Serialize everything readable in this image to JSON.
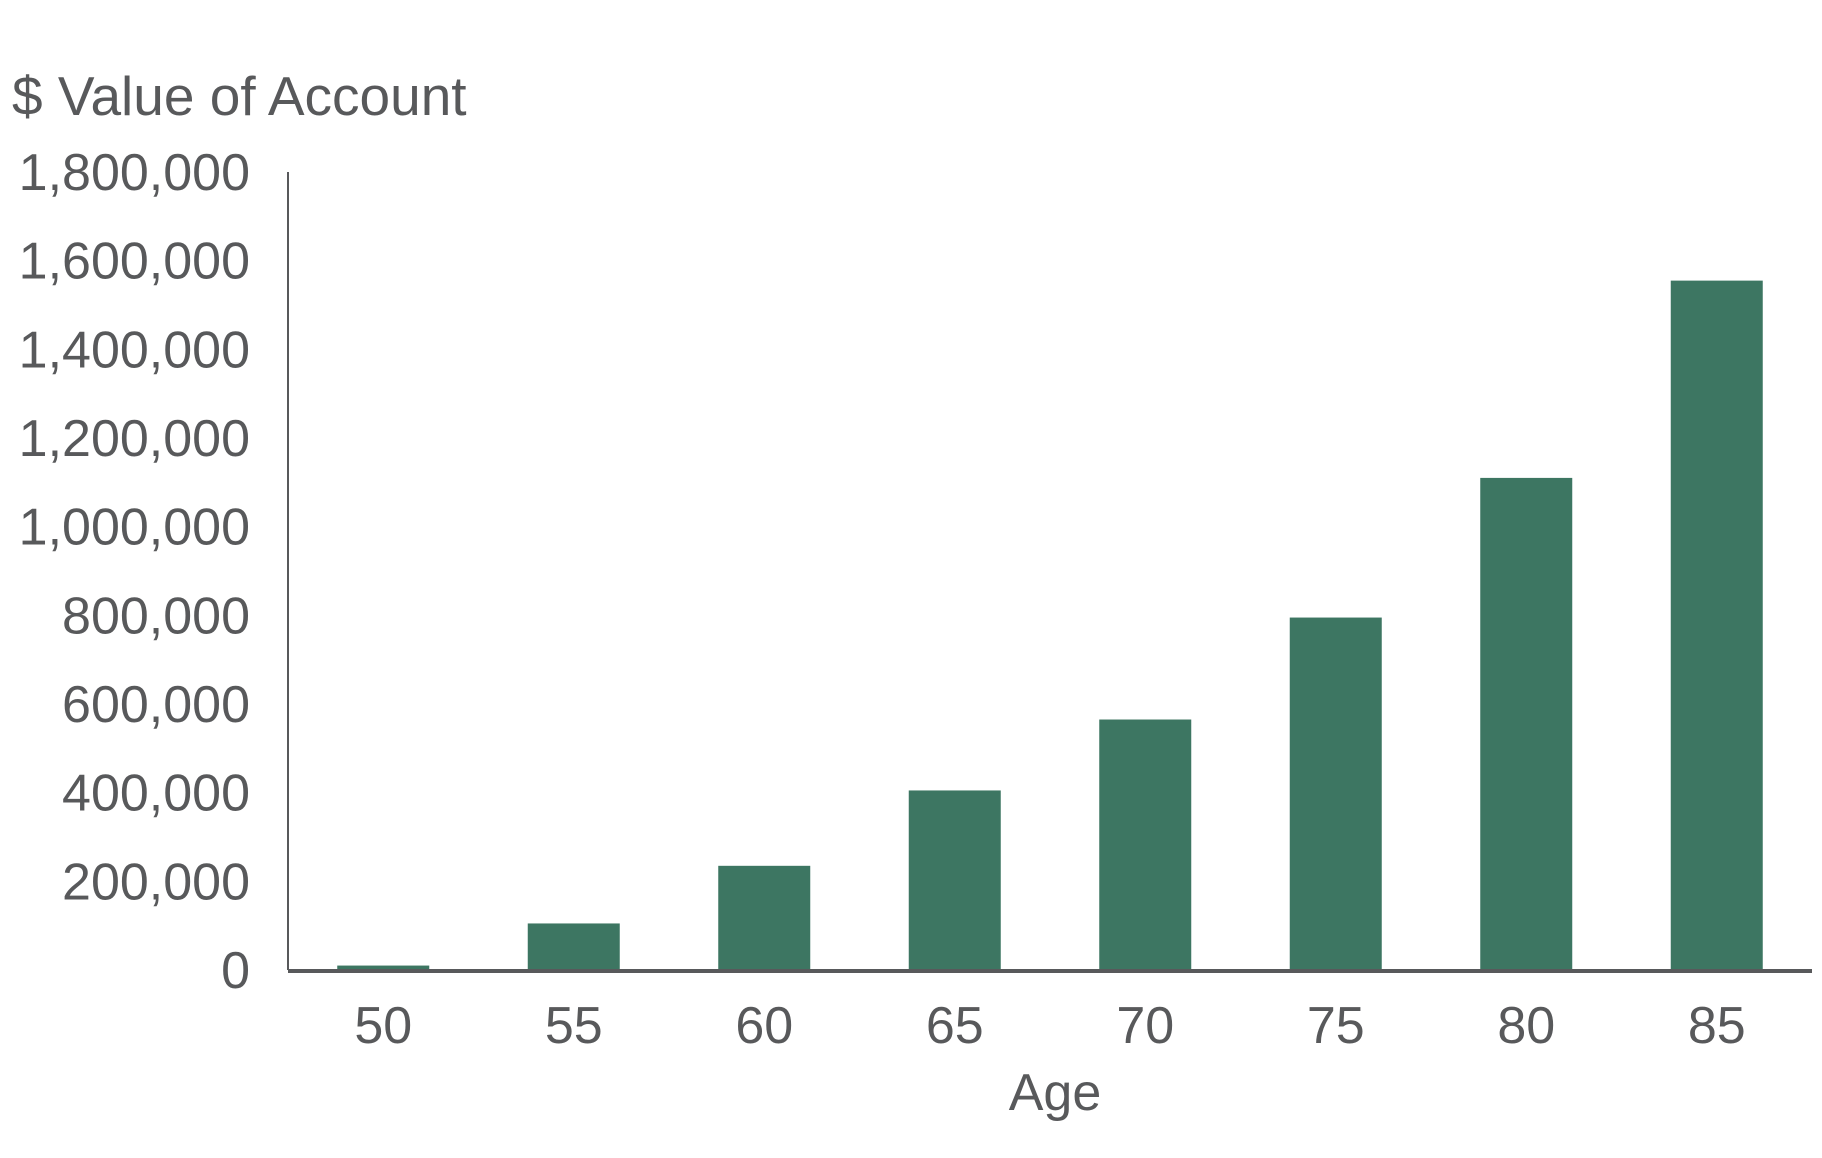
{
  "chart_data": {
    "type": "bar",
    "title": "",
    "ylabel": "$ Value of Account",
    "xlabel": "Age",
    "categories": [
      "50",
      "55",
      "60",
      "65",
      "70",
      "75",
      "80",
      "85"
    ],
    "values": [
      10000,
      105000,
      235000,
      405000,
      565000,
      795000,
      1110000,
      1555000
    ],
    "ylim": [
      0,
      1800000
    ],
    "yticks": [
      0,
      200000,
      400000,
      600000,
      800000,
      1000000,
      1200000,
      1400000,
      1600000,
      1800000
    ],
    "ytick_labels": [
      "0",
      "200,000",
      "400,000",
      "600,000",
      "800,000",
      "1,000,000",
      "1,200,000",
      "1,400,000",
      "1,600,000",
      "1,800,000"
    ],
    "grid": false,
    "legend": "none",
    "colors": {
      "bar": "#3d7662",
      "axis": "#58595b",
      "text": "#58595b"
    }
  }
}
